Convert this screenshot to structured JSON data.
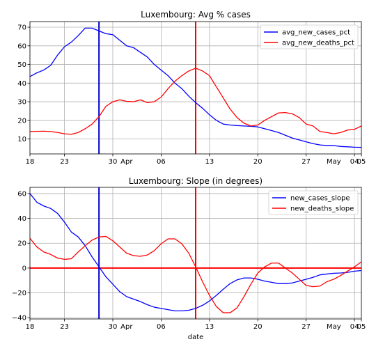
{
  "x_axis_label": "date",
  "x_ticks": [
    {
      "label": "18",
      "day": 0
    },
    {
      "label": "23",
      "day": 5
    },
    {
      "label": "30",
      "day": 12
    },
    {
      "label": "06",
      "day": 19
    },
    {
      "label": "13",
      "day": 26
    },
    {
      "label": "20",
      "day": 33
    },
    {
      "label": "27",
      "day": 40
    },
    {
      "label": "04",
      "day": 47
    },
    {
      "label": "05",
      "day": 48
    }
  ],
  "x_month_labels": [
    {
      "label": "Apr",
      "day": 14
    },
    {
      "label": "May",
      "day": 44
    }
  ],
  "x_range_days": [
    0,
    48
  ],
  "colors": {
    "series_a": "#0000ff",
    "series_b": "#ff0000",
    "grid": "#b0b0b0"
  },
  "chart_data": [
    {
      "type": "line",
      "title": "Luxembourg: Avg % cases",
      "ylim": [
        2,
        73
      ],
      "yticks": [
        10,
        20,
        30,
        40,
        50,
        60,
        70
      ],
      "grid": true,
      "legend_position": "top-right",
      "vlines": [
        {
          "day": 10,
          "color": "#0000cc"
        },
        {
          "day": 24,
          "color": "#ff0000"
        }
      ],
      "hlines": [],
      "series": [
        {
          "name": "avg_new_cases_pct",
          "color": "#0000ff",
          "values": [
            43.5,
            45.5,
            47,
            49.5,
            55,
            59.5,
            62,
            65.5,
            69.5,
            69.5,
            68,
            66.5,
            66,
            63,
            60,
            59,
            56.5,
            54,
            50,
            47,
            44,
            40,
            37,
            33,
            29.5,
            26.5,
            23,
            20,
            18,
            17.5,
            17.2,
            17,
            16.8,
            16.5,
            15.5,
            14.5,
            13.5,
            12,
            10.5,
            9.5,
            8.5,
            7.5,
            6.8,
            6.5,
            6.5,
            6.0,
            5.8,
            5.6,
            5.5
          ]
        },
        {
          "name": "avg_new_deaths_pct",
          "color": "#ff0000",
          "values": [
            14,
            14.1,
            14.2,
            14.0,
            13.5,
            12.8,
            12.5,
            13.5,
            15.5,
            18,
            22,
            27.5,
            30,
            31,
            30.2,
            30,
            31,
            29.5,
            30,
            32.5,
            37,
            41,
            44,
            46.5,
            48,
            46.5,
            44,
            38,
            32,
            26,
            21.5,
            18.5,
            17,
            17.5,
            20,
            22,
            24,
            24.2,
            23.5,
            21.5,
            18,
            17,
            14,
            13.5,
            12.8,
            13.5,
            14.8,
            15.2,
            17
          ]
        }
      ]
    },
    {
      "type": "line",
      "title": "Luxembourg: Slope (in degrees)",
      "ylim": [
        -41,
        65
      ],
      "yticks": [
        -40,
        -20,
        0,
        20,
        40,
        60
      ],
      "grid": true,
      "legend_position": "top-right",
      "vlines": [
        {
          "day": 10,
          "color": "#0000cc"
        },
        {
          "day": 24,
          "color": "#ff0000"
        }
      ],
      "hlines": [
        {
          "value": 0,
          "color": "#ff0000"
        }
      ],
      "series": [
        {
          "name": "new_cases_slope",
          "color": "#0000ff",
          "values": [
            60,
            53,
            50,
            48,
            44,
            37,
            29,
            25,
            18,
            9,
            1,
            -7,
            -13,
            -19,
            -23,
            -25,
            -27,
            -29.5,
            -31.5,
            -32.5,
            -33.5,
            -34.5,
            -34.5,
            -34,
            -32.5,
            -30,
            -26.5,
            -22,
            -17,
            -12.5,
            -9.5,
            -8,
            -8,
            -9,
            -10.5,
            -11.5,
            -12.5,
            -12.5,
            -12,
            -10.5,
            -9,
            -7.5,
            -5.5,
            -4.8,
            -4.2,
            -4,
            -3.5,
            -2.5,
            -2
          ]
        },
        {
          "name": "new_deaths_slope",
          "color": "#ff0000",
          "values": [
            24,
            17,
            13,
            11,
            8,
            7,
            7.5,
            13,
            18,
            22.5,
            25,
            25.5,
            22,
            17,
            12,
            10,
            9.5,
            10.5,
            14,
            19.5,
            23.5,
            23.5,
            19.5,
            12,
            1,
            -11,
            -22,
            -31,
            -36,
            -36,
            -32,
            -23,
            -13,
            -4,
            1,
            4,
            4,
            0,
            -4,
            -9,
            -14,
            -15,
            -14.5,
            -11,
            -9,
            -6,
            -2.5,
            1,
            5
          ]
        }
      ]
    }
  ]
}
